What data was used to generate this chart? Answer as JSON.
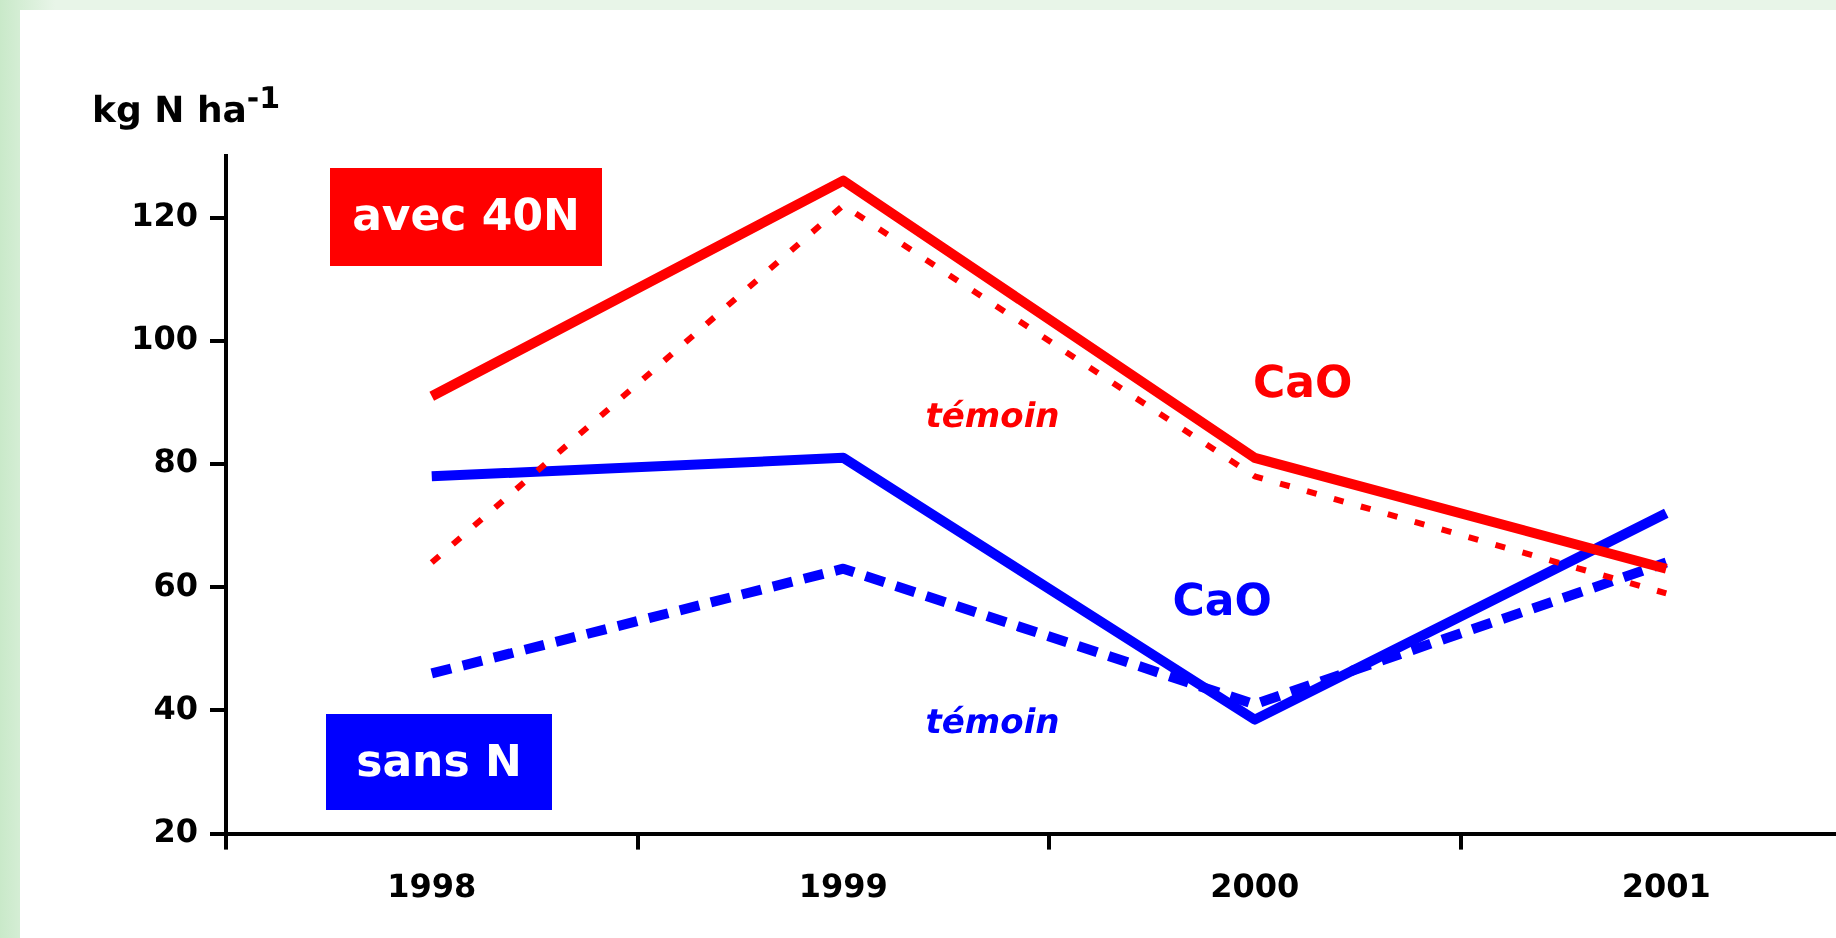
{
  "chart_data": {
    "type": "line",
    "ylabel": "kg N ha$^{-1}$",
    "categories": [
      "1998",
      "1999",
      "2000",
      "2001"
    ],
    "series": [
      {
        "name": "CaO",
        "color": "#ff0000",
        "line_style": "solid",
        "values": [
          91,
          126,
          81,
          63
        ]
      },
      {
        "name": "témoin",
        "color": "#ff0000",
        "line_style": "dotted",
        "values": [
          64,
          122,
          78,
          59
        ]
      },
      {
        "name": "CaO",
        "color": "#0000ff",
        "line_style": "solid",
        "values": [
          78,
          81,
          38.5,
          72
        ]
      },
      {
        "name": "témoin",
        "color": "#0000ff",
        "line_style": "dashed",
        "values": [
          46,
          63,
          41,
          64
        ]
      }
    ],
    "annotations": [
      "avec 40N",
      "sans N"
    ],
    "ylim": [
      20,
      130
    ],
    "yticks": [
      20,
      40,
      60,
      80,
      100,
      120
    ],
    "grid": false,
    "legend": false,
    "marker": "none"
  }
}
